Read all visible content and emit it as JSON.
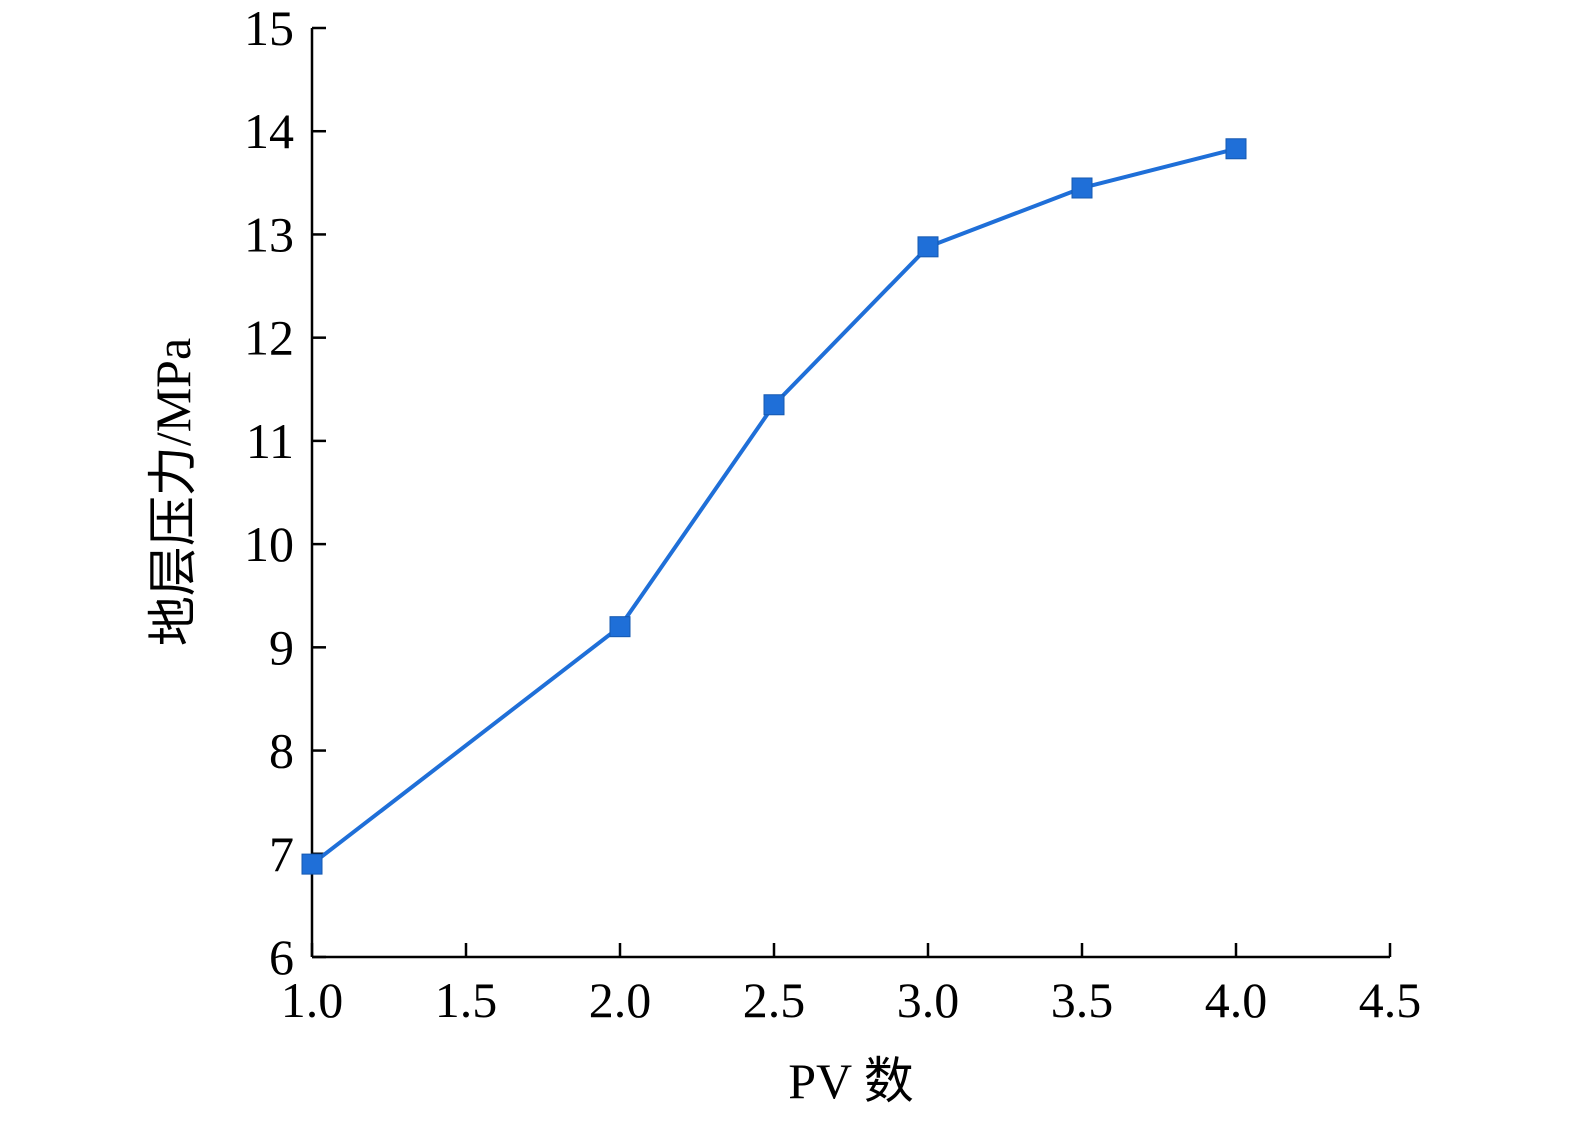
{
  "chart_data": {
    "type": "line",
    "title": "",
    "xlabel": "PV 数",
    "ylabel": "地层压力/MPa",
    "xlim": [
      1.0,
      4.5
    ],
    "ylim": [
      6,
      15
    ],
    "xticks": [
      "1.0",
      "1.5",
      "2.0",
      "2.5",
      "3.0",
      "3.5",
      "4.0",
      "4.5"
    ],
    "yticks": [
      "6",
      "7",
      "8",
      "9",
      "10",
      "11",
      "12",
      "13",
      "14",
      "15"
    ],
    "grid": false,
    "legend": "none",
    "series": [
      {
        "color": "#1f6fd8",
        "marker": "square",
        "points": [
          {
            "x": 1.0,
            "y": 6.9
          },
          {
            "x": 2.0,
            "y": 9.2
          },
          {
            "x": 2.5,
            "y": 11.35
          },
          {
            "x": 3.0,
            "y": 12.88
          },
          {
            "x": 3.5,
            "y": 13.45
          },
          {
            "x": 4.0,
            "y": 13.83
          }
        ]
      }
    ]
  }
}
